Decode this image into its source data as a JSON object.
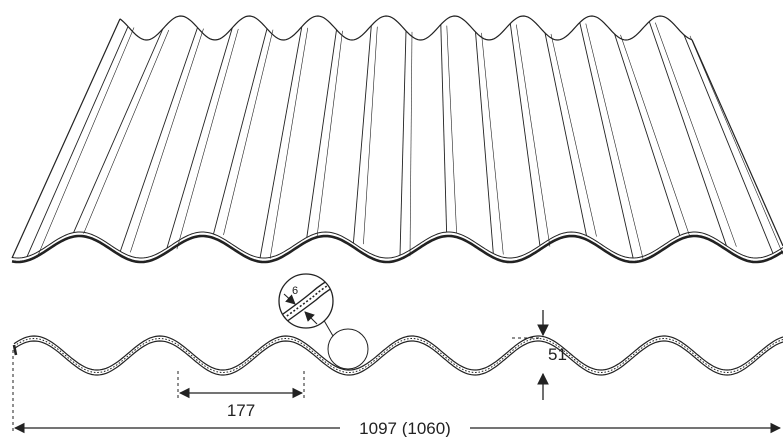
{
  "dimensions": {
    "pitch": "177",
    "height": "51",
    "thickness": "6",
    "width": "1097 (1060)"
  },
  "colors": {
    "line": "#222222",
    "background": "#ffffff"
  }
}
